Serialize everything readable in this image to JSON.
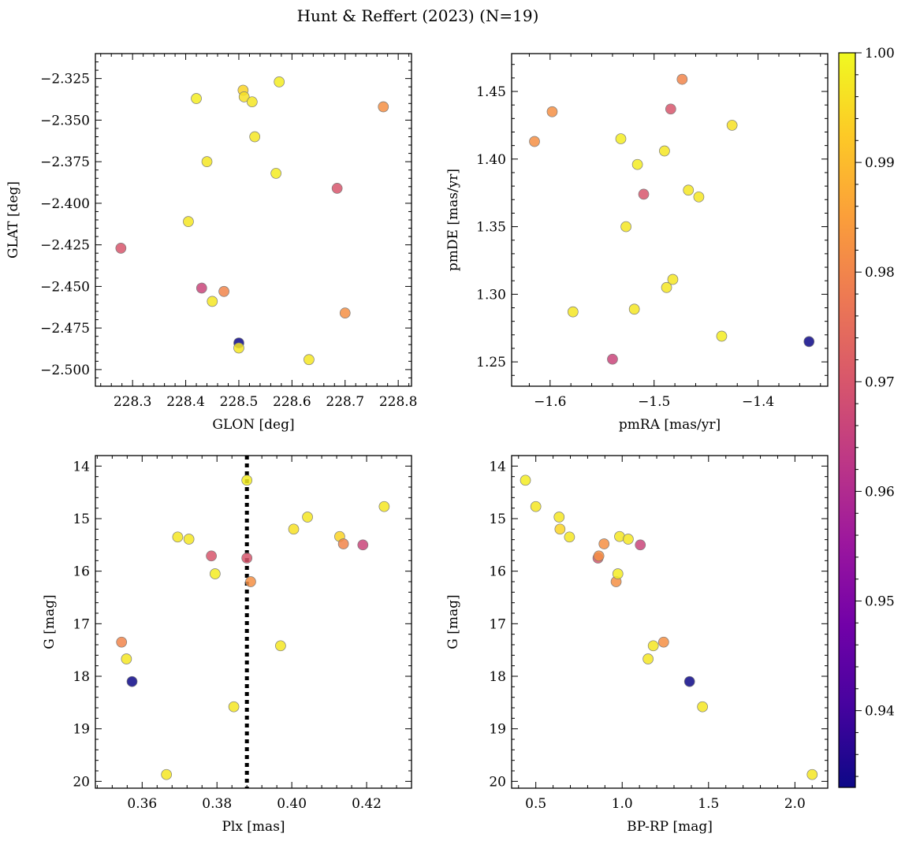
{
  "title": "Hunt & Reffert (2023) (N=19)",
  "colorbar": {
    "min": 0.933,
    "max": 1.0,
    "ticks": [
      0.94,
      0.95,
      0.96,
      0.97,
      0.98,
      0.99,
      1.0
    ],
    "tick_labels": [
      "0.94",
      "0.95",
      "0.96",
      "0.97",
      "0.98",
      "0.99",
      "1.00"
    ],
    "colormap": "plasma",
    "stops": [
      "#0d0887",
      "#46039f",
      "#7201a8",
      "#9c179e",
      "#bd3786",
      "#d8576b",
      "#ed7953",
      "#fb9f3a",
      "#fdca26",
      "#f0f921"
    ]
  },
  "chart_data": [
    {
      "type": "scatter",
      "id": "glon-glat",
      "xlabel": "GLON [deg]",
      "ylabel": "GLAT [deg]",
      "xlim": [
        228.23,
        228.825
      ],
      "ylim": [
        -2.51,
        -2.31
      ],
      "y_inverted": false,
      "xticks": [
        228.3,
        228.4,
        228.5,
        228.6,
        228.7,
        228.8
      ],
      "xtick_labels": [
        "228.3",
        "228.4",
        "228.5",
        "228.6",
        "228.7",
        "228.8"
      ],
      "yticks": [
        -2.325,
        -2.35,
        -2.375,
        -2.4,
        -2.425,
        -2.45,
        -2.475,
        -2.5
      ],
      "ytick_labels": [
        "−2.325",
        "−2.350",
        "−2.375",
        "−2.400",
        "−2.425",
        "−2.450",
        "−2.475",
        "−2.500"
      ],
      "vline": null,
      "points": [
        {
          "x": 228.278,
          "y": -2.427,
          "c": 0.97
        },
        {
          "x": 228.42,
          "y": -2.337,
          "c": 0.998
        },
        {
          "x": 228.44,
          "y": -2.375,
          "c": 0.997
        },
        {
          "x": 228.405,
          "y": -2.411,
          "c": 0.997
        },
        {
          "x": 228.43,
          "y": -2.451,
          "c": 0.966
        },
        {
          "x": 228.45,
          "y": -2.459,
          "c": 0.997
        },
        {
          "x": 228.472,
          "y": -2.453,
          "c": 0.98
        },
        {
          "x": 228.5,
          "y": -2.484,
          "c": 0.933
        },
        {
          "x": 228.5,
          "y": -2.487,
          "c": 0.997
        },
        {
          "x": 228.508,
          "y": -2.332,
          "c": 0.994
        },
        {
          "x": 228.51,
          "y": -2.336,
          "c": 0.996
        },
        {
          "x": 228.525,
          "y": -2.339,
          "c": 0.997
        },
        {
          "x": 228.53,
          "y": -2.36,
          "c": 0.997
        },
        {
          "x": 228.57,
          "y": -2.382,
          "c": 0.998
        },
        {
          "x": 228.576,
          "y": -2.327,
          "c": 0.998
        },
        {
          "x": 228.632,
          "y": -2.494,
          "c": 0.997
        },
        {
          "x": 228.685,
          "y": -2.391,
          "c": 0.97
        },
        {
          "x": 228.7,
          "y": -2.466,
          "c": 0.982
        },
        {
          "x": 228.772,
          "y": -2.342,
          "c": 0.982
        }
      ]
    },
    {
      "type": "scatter",
      "id": "pmra-pmde",
      "xlabel": "pmRA [mas/yr]",
      "ylabel": "pmDE [mas/yr]",
      "xlim": [
        -1.637,
        -1.333
      ],
      "ylim": [
        1.232,
        1.478
      ],
      "y_inverted": false,
      "xticks": [
        -1.6,
        -1.5,
        -1.4
      ],
      "xtick_labels": [
        "−1.6",
        "−1.5",
        "−1.4"
      ],
      "yticks": [
        1.25,
        1.3,
        1.35,
        1.4,
        1.45
      ],
      "ytick_labels": [
        "1.25",
        "1.30",
        "1.35",
        "1.40",
        "1.45"
      ],
      "vline": null,
      "points": [
        {
          "x": -1.615,
          "y": 1.413,
          "c": 0.982
        },
        {
          "x": -1.598,
          "y": 1.435,
          "c": 0.982
        },
        {
          "x": -1.578,
          "y": 1.287,
          "c": 0.997
        },
        {
          "x": -1.54,
          "y": 1.252,
          "c": 0.966
        },
        {
          "x": -1.532,
          "y": 1.415,
          "c": 0.998
        },
        {
          "x": -1.527,
          "y": 1.35,
          "c": 0.997
        },
        {
          "x": -1.519,
          "y": 1.289,
          "c": 0.997
        },
        {
          "x": -1.516,
          "y": 1.396,
          "c": 0.998
        },
        {
          "x": -1.51,
          "y": 1.374,
          "c": 0.97
        },
        {
          "x": -1.49,
          "y": 1.406,
          "c": 0.997
        },
        {
          "x": -1.488,
          "y": 1.305,
          "c": 0.997
        },
        {
          "x": -1.484,
          "y": 1.437,
          "c": 0.97
        },
        {
          "x": -1.482,
          "y": 1.311,
          "c": 0.997
        },
        {
          "x": -1.473,
          "y": 1.459,
          "c": 0.98
        },
        {
          "x": -1.467,
          "y": 1.377,
          "c": 0.997
        },
        {
          "x": -1.457,
          "y": 1.372,
          "c": 0.997
        },
        {
          "x": -1.435,
          "y": 1.269,
          "c": 0.998
        },
        {
          "x": -1.425,
          "y": 1.425,
          "c": 0.996
        },
        {
          "x": -1.351,
          "y": 1.265,
          "c": 0.933
        }
      ]
    },
    {
      "type": "scatter",
      "id": "plx-g",
      "xlabel": "Plx [mas]",
      "ylabel": "G [mag]",
      "xlim": [
        0.3475,
        0.432
      ],
      "ylim": [
        13.8,
        20.13
      ],
      "y_inverted": true,
      "xticks": [
        0.36,
        0.38,
        0.4,
        0.42
      ],
      "xtick_labels": [
        "0.36",
        "0.38",
        "0.40",
        "0.42"
      ],
      "yticks": [
        14,
        15,
        16,
        17,
        18,
        19,
        20
      ],
      "ytick_labels": [
        "14",
        "15",
        "16",
        "17",
        "18",
        "19",
        "20"
      ],
      "vline": 0.388,
      "points": [
        {
          "x": 0.3545,
          "y": 17.35,
          "c": 0.98
        },
        {
          "x": 0.3558,
          "y": 17.67,
          "c": 0.997
        },
        {
          "x": 0.3573,
          "y": 18.1,
          "c": 0.933
        },
        {
          "x": 0.3665,
          "y": 19.87,
          "c": 0.997
        },
        {
          "x": 0.3695,
          "y": 15.35,
          "c": 0.997
        },
        {
          "x": 0.3725,
          "y": 15.39,
          "c": 0.997
        },
        {
          "x": 0.3785,
          "y": 15.71,
          "c": 0.97
        },
        {
          "x": 0.3795,
          "y": 16.05,
          "c": 0.998
        },
        {
          "x": 0.3845,
          "y": 18.58,
          "c": 0.997
        },
        {
          "x": 0.388,
          "y": 14.27,
          "c": 0.998
        },
        {
          "x": 0.388,
          "y": 15.75,
          "c": 0.97
        },
        {
          "x": 0.389,
          "y": 16.2,
          "c": 0.982
        },
        {
          "x": 0.397,
          "y": 17.42,
          "c": 0.997
        },
        {
          "x": 0.4005,
          "y": 15.2,
          "c": 0.996
        },
        {
          "x": 0.4042,
          "y": 14.97,
          "c": 0.997
        },
        {
          "x": 0.4128,
          "y": 15.34,
          "c": 0.994
        },
        {
          "x": 0.4138,
          "y": 15.48,
          "c": 0.98
        },
        {
          "x": 0.419,
          "y": 15.5,
          "c": 0.966
        },
        {
          "x": 0.4247,
          "y": 14.77,
          "c": 0.997
        }
      ]
    },
    {
      "type": "scatter",
      "id": "bprp-g",
      "xlabel": "BP-RP [mag]",
      "ylabel": "G [mag]",
      "xlim": [
        0.36,
        2.19
      ],
      "ylim": [
        13.8,
        20.13
      ],
      "y_inverted": true,
      "xticks": [
        0.5,
        1.0,
        1.5,
        2.0
      ],
      "xtick_labels": [
        "0.5",
        "1.0",
        "1.5",
        "2.0"
      ],
      "yticks": [
        14,
        15,
        16,
        17,
        18,
        19,
        20
      ],
      "ytick_labels": [
        "14",
        "15",
        "16",
        "17",
        "18",
        "19",
        "20"
      ],
      "vline": null,
      "points": [
        {
          "x": 0.44,
          "y": 14.27,
          "c": 0.998
        },
        {
          "x": 0.5,
          "y": 14.77,
          "c": 0.997
        },
        {
          "x": 0.635,
          "y": 14.97,
          "c": 0.997
        },
        {
          "x": 0.64,
          "y": 15.2,
          "c": 0.994
        },
        {
          "x": 0.695,
          "y": 15.35,
          "c": 0.997
        },
        {
          "x": 0.86,
          "y": 15.75,
          "c": 0.97
        },
        {
          "x": 0.865,
          "y": 15.71,
          "c": 0.982
        },
        {
          "x": 0.895,
          "y": 15.48,
          "c": 0.982
        },
        {
          "x": 0.965,
          "y": 16.2,
          "c": 0.982
        },
        {
          "x": 0.975,
          "y": 16.05,
          "c": 0.998
        },
        {
          "x": 0.985,
          "y": 15.34,
          "c": 0.997
        },
        {
          "x": 1.035,
          "y": 15.39,
          "c": 0.997
        },
        {
          "x": 1.105,
          "y": 15.5,
          "c": 0.966
        },
        {
          "x": 1.15,
          "y": 17.67,
          "c": 0.997
        },
        {
          "x": 1.18,
          "y": 17.42,
          "c": 0.997
        },
        {
          "x": 1.24,
          "y": 17.35,
          "c": 0.982
        },
        {
          "x": 1.39,
          "y": 18.1,
          "c": 0.933
        },
        {
          "x": 1.465,
          "y": 18.58,
          "c": 0.997
        },
        {
          "x": 2.1,
          "y": 19.87,
          "c": 0.997
        }
      ]
    }
  ]
}
